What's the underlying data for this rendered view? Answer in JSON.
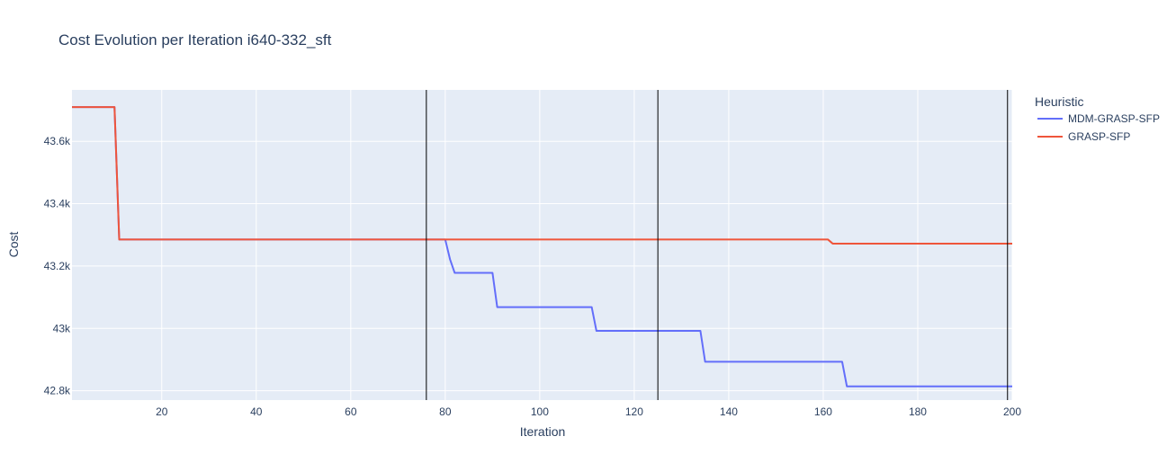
{
  "chart_data": {
    "type": "line",
    "title": "Cost Evolution per Iteration i640-332_sft",
    "xlabel": "Iteration",
    "ylabel": "Cost",
    "xlim": [
      1,
      200
    ],
    "ylim": [
      42770,
      43765
    ],
    "x_ticks": [
      {
        "value": 20,
        "label": "20"
      },
      {
        "value": 40,
        "label": "40"
      },
      {
        "value": 60,
        "label": "60"
      },
      {
        "value": 80,
        "label": "80"
      },
      {
        "value": 100,
        "label": "100"
      },
      {
        "value": 120,
        "label": "120"
      },
      {
        "value": 140,
        "label": "140"
      },
      {
        "value": 160,
        "label": "160"
      },
      {
        "value": 180,
        "label": "180"
      },
      {
        "value": 200,
        "label": "200"
      }
    ],
    "y_ticks": [
      {
        "value": 42800,
        "label": "42.8k"
      },
      {
        "value": 43000,
        "label": "43k"
      },
      {
        "value": 43200,
        "label": "43.2k"
      },
      {
        "value": 43400,
        "label": "43.4k"
      },
      {
        "value": 43600,
        "label": "43.6k"
      }
    ],
    "grid": true,
    "legend_title": "Heuristic",
    "legend_position": "right",
    "vertical_lines": [
      76,
      125,
      199
    ],
    "series": [
      {
        "name": "MDM-GRASP-SFP",
        "color": "#636efa",
        "points": [
          [
            1,
            43710
          ],
          [
            10,
            43710
          ],
          [
            11,
            43285
          ],
          [
            80,
            43285
          ],
          [
            81,
            43222
          ],
          [
            82,
            43178
          ],
          [
            90,
            43178
          ],
          [
            91,
            43068
          ],
          [
            111,
            43068
          ],
          [
            112,
            42992
          ],
          [
            134,
            42992
          ],
          [
            135,
            42893
          ],
          [
            164,
            42893
          ],
          [
            165,
            42814
          ],
          [
            200,
            42814
          ]
        ]
      },
      {
        "name": "GRASP-SFP",
        "color": "#ef553b",
        "points": [
          [
            1,
            43710
          ],
          [
            10,
            43710
          ],
          [
            11,
            43285
          ],
          [
            161,
            43285
          ],
          [
            162,
            43272
          ],
          [
            200,
            43272
          ]
        ]
      }
    ]
  }
}
